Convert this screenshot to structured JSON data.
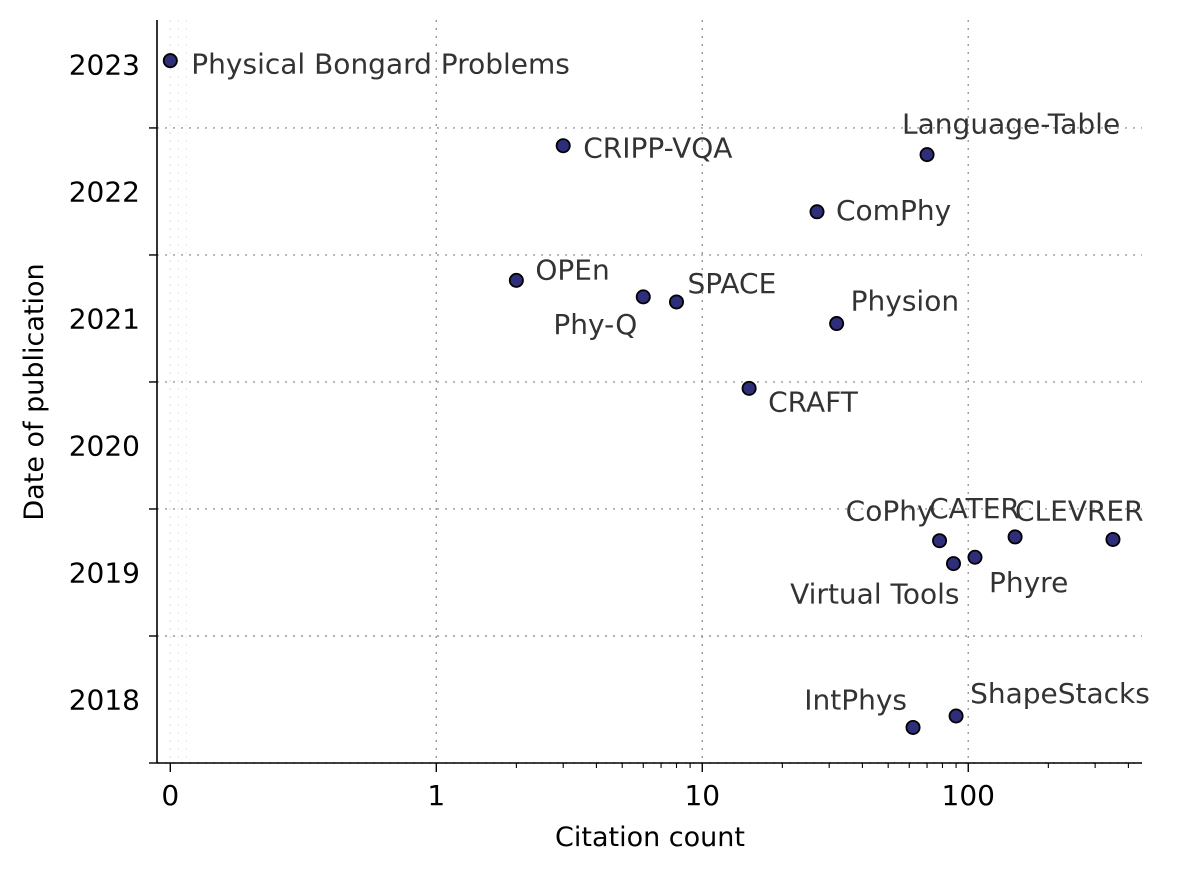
{
  "chart_data": {
    "type": "scatter",
    "xlabel": "Citation count",
    "ylabel": "Date of publication",
    "x_scale": "symlog",
    "xlim": [
      -0.05,
      450
    ],
    "ylim": [
      2017.5,
      2023.35
    ],
    "x_ticks": [
      {
        "value": 0,
        "label": "0"
      },
      {
        "value": 1,
        "label": "1"
      },
      {
        "value": 10,
        "label": "10"
      },
      {
        "value": 100,
        "label": "100"
      }
    ],
    "y_ticks": [
      {
        "value": 2018,
        "label": "2018"
      },
      {
        "value": 2019,
        "label": "2019"
      },
      {
        "value": 2020,
        "label": "2020"
      },
      {
        "value": 2021,
        "label": "2021"
      },
      {
        "value": 2022,
        "label": "2022"
      },
      {
        "value": 2023,
        "label": "2023"
      }
    ],
    "grid": true,
    "marker_color": "#2e2e7a",
    "points": [
      {
        "label": "Physical Bongard Problems",
        "x": 0,
        "y": 2023.03
      },
      {
        "label": "CRIPP-VQA",
        "x": 3,
        "y": 2022.36
      },
      {
        "label": "Language-Table",
        "x": 70,
        "y": 2022.29
      },
      {
        "label": "ComPhy",
        "x": 27,
        "y": 2021.84
      },
      {
        "label": "OPEn",
        "x": 2,
        "y": 2021.3
      },
      {
        "label": "Phy-Q",
        "x": 6,
        "y": 2021.17
      },
      {
        "label": "SPACE",
        "x": 8,
        "y": 2021.13
      },
      {
        "label": "Physion",
        "x": 32,
        "y": 2020.96
      },
      {
        "label": "CRAFT",
        "x": 15,
        "y": 2020.45
      },
      {
        "label": "CoPhy",
        "x": 78,
        "y": 2019.25
      },
      {
        "label": "CATER",
        "x": 150,
        "y": 2019.28
      },
      {
        "label": "CLEVRER",
        "x": 350,
        "y": 2019.26
      },
      {
        "label": "Virtual Tools",
        "x": 88,
        "y": 2019.07
      },
      {
        "label": "Phyre",
        "x": 106,
        "y": 2019.12
      },
      {
        "label": "IntPhys",
        "x": 62,
        "y": 2017.78
      },
      {
        "label": "ShapeStacks",
        "x": 90,
        "y": 2017.87
      }
    ]
  }
}
